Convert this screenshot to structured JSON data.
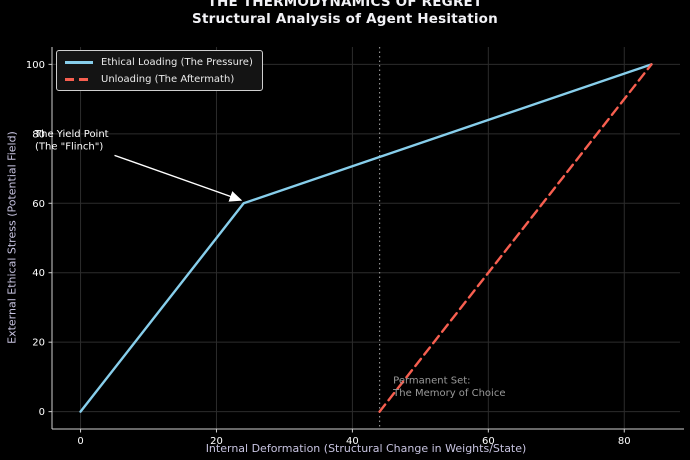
{
  "chart_data": {
    "type": "line",
    "title_lines": [
      "THE THERMODYNAMICS OF REGRET",
      "Structural Analysis of Agent Hesitation"
    ],
    "xlabel": "Internal Deformation (Structural Change in Weights/State)",
    "ylabel": "External Ethical Stress (Potential Field)",
    "xlim": [
      -4.2,
      88.2
    ],
    "ylim": [
      -5,
      105
    ],
    "xticks": [
      0,
      20,
      40,
      60,
      80
    ],
    "yticks": [
      0,
      20,
      40,
      60,
      80,
      100
    ],
    "grid": true,
    "legend_position": "upper-left",
    "series": [
      {
        "name": "Ethical Loading (The Pressure)",
        "style": "solid",
        "color": "#87ceeb",
        "points": [
          [
            0,
            0
          ],
          [
            24,
            60
          ],
          [
            84,
            100
          ]
        ]
      },
      {
        "name": "Unloading (The Aftermath)",
        "style": "dashed",
        "color": "#f75f50",
        "points": [
          [
            44,
            0
          ],
          [
            84,
            100
          ]
        ]
      }
    ],
    "vline": {
      "x": 44,
      "style": "dotted",
      "color": "#8f8f8f"
    },
    "annotations": [
      {
        "id": "yield-point",
        "lines": [
          "The Yield Point",
          "(The \"Flinch\")"
        ],
        "xy": [
          23.6,
          60.9
        ],
        "text_xy": [
          -6.7,
          82
        ],
        "arrow_from": [
          5,
          73.8
        ],
        "arrow": true,
        "color": "#ffffff"
      },
      {
        "id": "permanent-set",
        "lines": [
          "Permanent Set:",
          "The Memory of Choice"
        ],
        "text_xy": [
          46,
          11
        ],
        "arrow": false,
        "color": "#9a9a9a"
      }
    ],
    "colors": {
      "background": "#000000",
      "grid": "#2c2c2c",
      "spine": "#cfcfcf",
      "tick_label": "#ffffff",
      "axis_label": "#c7c3e0",
      "title": "#f2f2f6"
    }
  }
}
